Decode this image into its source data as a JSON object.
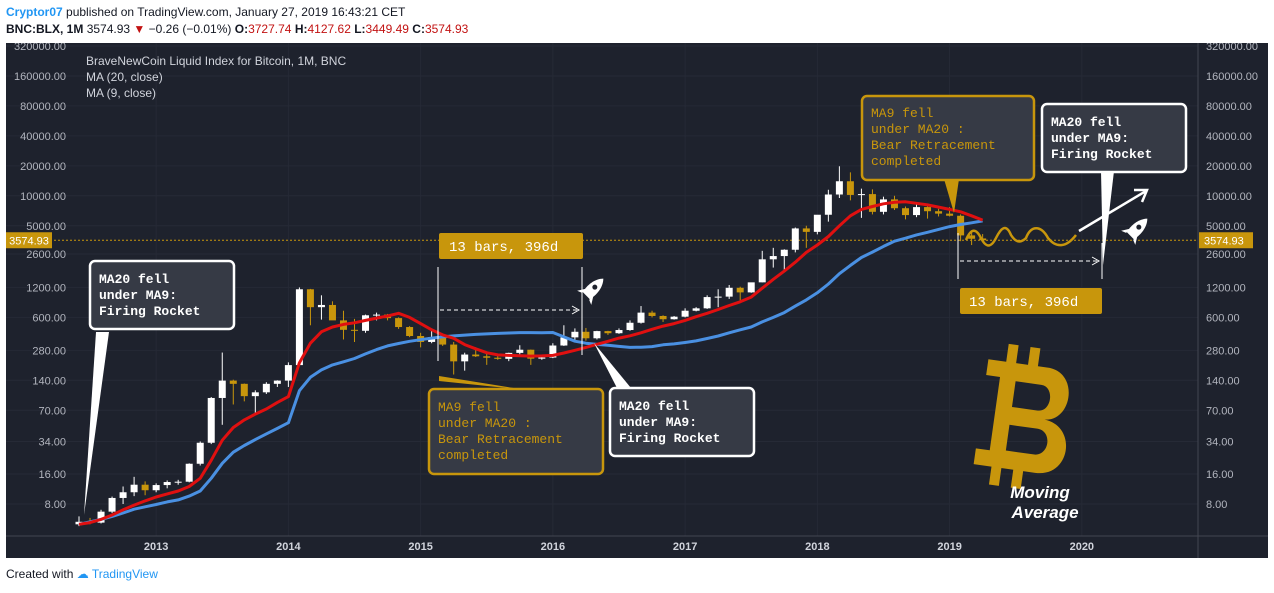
{
  "header": {
    "author": "Cryptor07",
    "published": "published on TradingView.com, January 27, 2019 16:43:21 CET",
    "symbol": "BNC:BLX, 1M",
    "price": "3574.93",
    "change": "−0.26 (−0.01%)",
    "o_label": "O:",
    "o": "3727.74",
    "h_label": "H:",
    "h": "4127.62",
    "l_label": "L:",
    "l": "3449.49",
    "c_label": "C:",
    "c": "3574.93"
  },
  "legend": {
    "title": "BraveNewCoin Liquid Index for Bitcoin, 1M, BNC",
    "ma20": "MA (20, close)",
    "ma9": "MA (9, close)"
  },
  "footer": {
    "created": "Created with",
    "brand": "TradingView"
  },
  "colors": {
    "background": "#1e222d",
    "up": "#ffffff",
    "down": "#c8960c",
    "ma20": "#4a90e2",
    "ma9": "#e01010",
    "gold": "#c8960c",
    "price_line": "#c8960c"
  },
  "annotations": {
    "box1": [
      "MA20 fell",
      "under MA9:",
      "Firing Rocket"
    ],
    "box2": [
      "MA9 fell",
      "under MA20 :",
      "Bear Retracement",
      "completed"
    ],
    "box3": [
      "MA20 fell",
      "under MA9:",
      "Firing Rocket"
    ],
    "box4": [
      "MA9 fell",
      "under MA20 :",
      "Bear Retracement",
      "completed"
    ],
    "box5": [
      "MA20 fell",
      "under MA9:",
      "Firing Rocket"
    ],
    "bars_label_1": "13 bars, 396d",
    "bars_label_2": "13 bars, 396d",
    "moving_average": [
      "Moving",
      "Average"
    ],
    "rocket_icon": "rocket-icon",
    "bitcoin_icon": "bitcoin-logo-icon"
  },
  "chart_data": {
    "type": "candlestick",
    "scale": "log",
    "title": "BraveNewCoin Liquid Index for Bitcoin, 1M, BNC",
    "ylim": [
      4.5,
      400000
    ],
    "y_ticks": [
      8,
      16,
      34,
      70,
      140,
      280,
      600,
      1200,
      2600,
      5000,
      10000,
      20000,
      40000,
      80000,
      160000,
      320000
    ],
    "y_tick_labels": [
      "8.00",
      "16.00",
      "34.00",
      "70.00",
      "140.00",
      "280.00",
      "600.00",
      "1200.00",
      "2600.00",
      "5000.00",
      "10000.00",
      "20000.00",
      "40000.00",
      "80000.00",
      "160000.00",
      "320000.00"
    ],
    "x_labels": [
      "2013",
      "2014",
      "2015",
      "2016",
      "2017",
      "2018",
      "2019",
      "2020"
    ],
    "last_price": 3574.93,
    "last_price_label": "3574.93",
    "candles": [
      {
        "o": 5.0,
        "h": 6.0,
        "l": 4.8,
        "c": 5.3
      },
      {
        "o": 5.3,
        "h": 5.8,
        "l": 5.0,
        "c": 5.2
      },
      {
        "o": 5.2,
        "h": 7.0,
        "l": 5.1,
        "c": 6.7
      },
      {
        "o": 6.7,
        "h": 9.5,
        "l": 6.5,
        "c": 9.2
      },
      {
        "o": 9.2,
        "h": 12.0,
        "l": 8.0,
        "c": 10.5
      },
      {
        "o": 10.5,
        "h": 15.0,
        "l": 9.6,
        "c": 12.5
      },
      {
        "o": 12.5,
        "h": 13.5,
        "l": 9.8,
        "c": 11.0
      },
      {
        "o": 11.0,
        "h": 12.9,
        "l": 10.5,
        "c": 12.4
      },
      {
        "o": 12.4,
        "h": 13.8,
        "l": 11.5,
        "c": 13.3
      },
      {
        "o": 13.3,
        "h": 14.0,
        "l": 12.5,
        "c": 13.4
      },
      {
        "o": 13.4,
        "h": 20.5,
        "l": 13.2,
        "c": 20.3
      },
      {
        "o": 20.3,
        "h": 34.0,
        "l": 19.5,
        "c": 33.0
      },
      {
        "o": 33.0,
        "h": 95.0,
        "l": 32.0,
        "c": 93.0
      },
      {
        "o": 93.0,
        "h": 266.0,
        "l": 50.0,
        "c": 139.0
      },
      {
        "o": 139.0,
        "h": 142.0,
        "l": 80.0,
        "c": 129.0
      },
      {
        "o": 129.0,
        "h": 130.0,
        "l": 86.0,
        "c": 97.0
      },
      {
        "o": 97.0,
        "h": 111.0,
        "l": 65.0,
        "c": 106.0
      },
      {
        "o": 106.0,
        "h": 134.0,
        "l": 102.0,
        "c": 129.0
      },
      {
        "o": 129.0,
        "h": 140.0,
        "l": 120.0,
        "c": 139.0
      },
      {
        "o": 139.0,
        "h": 212.0,
        "l": 120.0,
        "c": 199.0
      },
      {
        "o": 199.0,
        "h": 1200.0,
        "l": 195.0,
        "c": 1150.0
      },
      {
        "o": 1150.0,
        "h": 1160.0,
        "l": 500.0,
        "c": 760.0
      },
      {
        "o": 760.0,
        "h": 1000.0,
        "l": 570.0,
        "c": 800.0
      },
      {
        "o": 800.0,
        "h": 870.0,
        "l": 600.0,
        "c": 560.0
      },
      {
        "o": 560.0,
        "h": 700.0,
        "l": 360.0,
        "c": 450.0
      },
      {
        "o": 450.0,
        "h": 580.0,
        "l": 340.0,
        "c": 440.0
      },
      {
        "o": 440.0,
        "h": 640.0,
        "l": 420.0,
        "c": 630.0
      },
      {
        "o": 630.0,
        "h": 670.0,
        "l": 560.0,
        "c": 640.0
      },
      {
        "o": 640.0,
        "h": 650.0,
        "l": 560.0,
        "c": 590.0
      },
      {
        "o": 590.0,
        "h": 600.0,
        "l": 460.0,
        "c": 480.0
      },
      {
        "o": 480.0,
        "h": 490.0,
        "l": 380.0,
        "c": 390.0
      },
      {
        "o": 390.0,
        "h": 420.0,
        "l": 300.0,
        "c": 340.0
      },
      {
        "o": 340.0,
        "h": 460.0,
        "l": 330.0,
        "c": 380.0
      },
      {
        "o": 380.0,
        "h": 390.0,
        "l": 310.0,
        "c": 320.0
      },
      {
        "o": 320.0,
        "h": 340.0,
        "l": 160.0,
        "c": 217.0
      },
      {
        "o": 217.0,
        "h": 265.0,
        "l": 175.0,
        "c": 254.0
      },
      {
        "o": 254.0,
        "h": 300.0,
        "l": 240.0,
        "c": 244.0
      },
      {
        "o": 244.0,
        "h": 260.0,
        "l": 200.0,
        "c": 236.0
      },
      {
        "o": 236.0,
        "h": 247.0,
        "l": 225.0,
        "c": 230.0
      },
      {
        "o": 230.0,
        "h": 265.0,
        "l": 218.0,
        "c": 264.0
      },
      {
        "o": 264.0,
        "h": 315.0,
        "l": 255.0,
        "c": 284.0
      },
      {
        "o": 284.0,
        "h": 285.0,
        "l": 200.0,
        "c": 231.0
      },
      {
        "o": 231.0,
        "h": 245.0,
        "l": 225.0,
        "c": 237.0
      },
      {
        "o": 237.0,
        "h": 330.0,
        "l": 234.0,
        "c": 313.0
      },
      {
        "o": 313.0,
        "h": 500.0,
        "l": 310.0,
        "c": 378.0
      },
      {
        "o": 378.0,
        "h": 465.0,
        "l": 350.0,
        "c": 430.0
      },
      {
        "o": 430.0,
        "h": 470.0,
        "l": 350.0,
        "c": 370.0
      },
      {
        "o": 370.0,
        "h": 440.0,
        "l": 360.0,
        "c": 437.0
      },
      {
        "o": 437.0,
        "h": 440.0,
        "l": 400.0,
        "c": 416.0
      },
      {
        "o": 416.0,
        "h": 465.0,
        "l": 410.0,
        "c": 448.0
      },
      {
        "o": 448.0,
        "h": 560.0,
        "l": 440.0,
        "c": 530.0
      },
      {
        "o": 530.0,
        "h": 780.0,
        "l": 520.0,
        "c": 670.0
      },
      {
        "o": 670.0,
        "h": 700.0,
        "l": 600.0,
        "c": 620.0
      },
      {
        "o": 620.0,
        "h": 630.0,
        "l": 540.0,
        "c": 575.0
      },
      {
        "o": 575.0,
        "h": 620.0,
        "l": 570.0,
        "c": 610.0
      },
      {
        "o": 610.0,
        "h": 740.0,
        "l": 600.0,
        "c": 700.0
      },
      {
        "o": 700.0,
        "h": 760.0,
        "l": 690.0,
        "c": 740.0
      },
      {
        "o": 740.0,
        "h": 1000.0,
        "l": 730.0,
        "c": 960.0
      },
      {
        "o": 960.0,
        "h": 1150.0,
        "l": 760.0,
        "c": 970.0
      },
      {
        "o": 970.0,
        "h": 1270.0,
        "l": 920.0,
        "c": 1190.0
      },
      {
        "o": 1190.0,
        "h": 1220.0,
        "l": 890.0,
        "c": 1070.0
      },
      {
        "o": 1070.0,
        "h": 1330.0,
        "l": 1060.0,
        "c": 1350.0
      },
      {
        "o": 1350.0,
        "h": 2800.0,
        "l": 1350.0,
        "c": 2300.0
      },
      {
        "o": 2300.0,
        "h": 3000.0,
        "l": 1900.0,
        "c": 2480.0
      },
      {
        "o": 2480.0,
        "h": 2900.0,
        "l": 1800.0,
        "c": 2870.0
      },
      {
        "o": 2870.0,
        "h": 4800.0,
        "l": 2700.0,
        "c": 4700.0
      },
      {
        "o": 4700.0,
        "h": 5000.0,
        "l": 3000.0,
        "c": 4340.0
      },
      {
        "o": 4340.0,
        "h": 6400.0,
        "l": 4100.0,
        "c": 6450.0
      },
      {
        "o": 6450.0,
        "h": 11500.0,
        "l": 5500.0,
        "c": 10300.0
      },
      {
        "o": 10300.0,
        "h": 19800.0,
        "l": 9500.0,
        "c": 14000.0
      },
      {
        "o": 14000.0,
        "h": 17200.0,
        "l": 9000.0,
        "c": 10200.0
      },
      {
        "o": 10200.0,
        "h": 11800.0,
        "l": 6000.0,
        "c": 10400.0
      },
      {
        "o": 10400.0,
        "h": 11600.0,
        "l": 6500.0,
        "c": 6900.0
      },
      {
        "o": 6900.0,
        "h": 9800.0,
        "l": 6500.0,
        "c": 9200.0
      },
      {
        "o": 9200.0,
        "h": 10000.0,
        "l": 7200.0,
        "c": 7500.0
      },
      {
        "o": 7500.0,
        "h": 7800.0,
        "l": 5800.0,
        "c": 6400.0
      },
      {
        "o": 6400.0,
        "h": 8400.0,
        "l": 6100.0,
        "c": 7700.0
      },
      {
        "o": 7700.0,
        "h": 7800.0,
        "l": 5900.0,
        "c": 7000.0
      },
      {
        "o": 7000.0,
        "h": 7400.0,
        "l": 6200.0,
        "c": 6620.0
      },
      {
        "o": 6620.0,
        "h": 7700.0,
        "l": 6200.0,
        "c": 6300.0
      },
      {
        "o": 6300.0,
        "h": 6500.0,
        "l": 3500.0,
        "c": 4000.0
      },
      {
        "o": 4000.0,
        "h": 4300.0,
        "l": 3200.0,
        "c": 3700.0
      },
      {
        "o": 3727.74,
        "h": 4127.62,
        "l": 3449.49,
        "c": 3574.93
      }
    ],
    "series": [
      {
        "name": "MA (20, close)",
        "values": [
          5.0,
          5.3,
          5.6,
          6.0,
          6.5,
          7.1,
          7.5,
          7.9,
          8.4,
          8.8,
          9.6,
          10.8,
          14.5,
          20.5,
          26.5,
          31.0,
          35.5,
          40.5,
          46.0,
          52.5,
          110.0,
          150.0,
          178.0,
          200.0,
          215.0,
          232.0,
          258.0,
          285.0,
          310.0,
          328.0,
          345.0,
          358.0,
          372.0,
          382.0,
          391.0,
          398.0,
          405.0,
          410.0,
          414.0,
          418.0,
          422.0,
          422.0,
          420.0,
          423.0,
          382.0,
          346.0,
          330.0,
          321.0,
          315.0,
          307.0,
          300.0,
          301.0,
          305.0,
          318.0,
          325.0,
          336.0,
          348.0,
          368.0,
          390.0,
          420.0,
          450.0,
          480.0,
          540.0,
          600.0,
          670.0,
          780.0,
          900.0,
          1060.0,
          1300.0,
          1650.0,
          2000.0,
          2400.0,
          2720.0,
          3100.0,
          3500.0,
          3750.0,
          4050.0,
          4300.0,
          4600.0,
          4900.0,
          5150.0,
          5350.0,
          5600.0
        ]
      },
      {
        "name": "MA (9, close)",
        "values": [
          5.0,
          5.2,
          5.6,
          6.2,
          7.0,
          7.8,
          8.6,
          9.4,
          10.1,
          10.8,
          12.0,
          14.5,
          22.0,
          35.0,
          47.0,
          56.0,
          64.0,
          72.0,
          84.0,
          96.0,
          210.0,
          330.0,
          430.0,
          480.0,
          510.0,
          530.0,
          560.0,
          590.0,
          620.0,
          660.0,
          600.0,
          520.0,
          450.0,
          400.0,
          370.0,
          320.0,
          290.0,
          265.0,
          252.0,
          249.0,
          247.0,
          245.0,
          246.0,
          249.0,
          263.0,
          280.0,
          300.0,
          322.0,
          345.0,
          372.0,
          392.0,
          420.0,
          455.0,
          490.0,
          520.0,
          560.0,
          610.0,
          660.0,
          720.0,
          790.0,
          860.0,
          960.0,
          1180.0,
          1450.0,
          1750.0,
          2150.0,
          2700.0,
          3200.0,
          3900.0,
          5000.0,
          6300.0,
          7300.0,
          7800.0,
          8300.0,
          8600.0,
          8700.0,
          8400.0,
          8100.0,
          7700.0,
          7300.0,
          6900.0,
          6300.0,
          5700.0
        ]
      }
    ]
  }
}
